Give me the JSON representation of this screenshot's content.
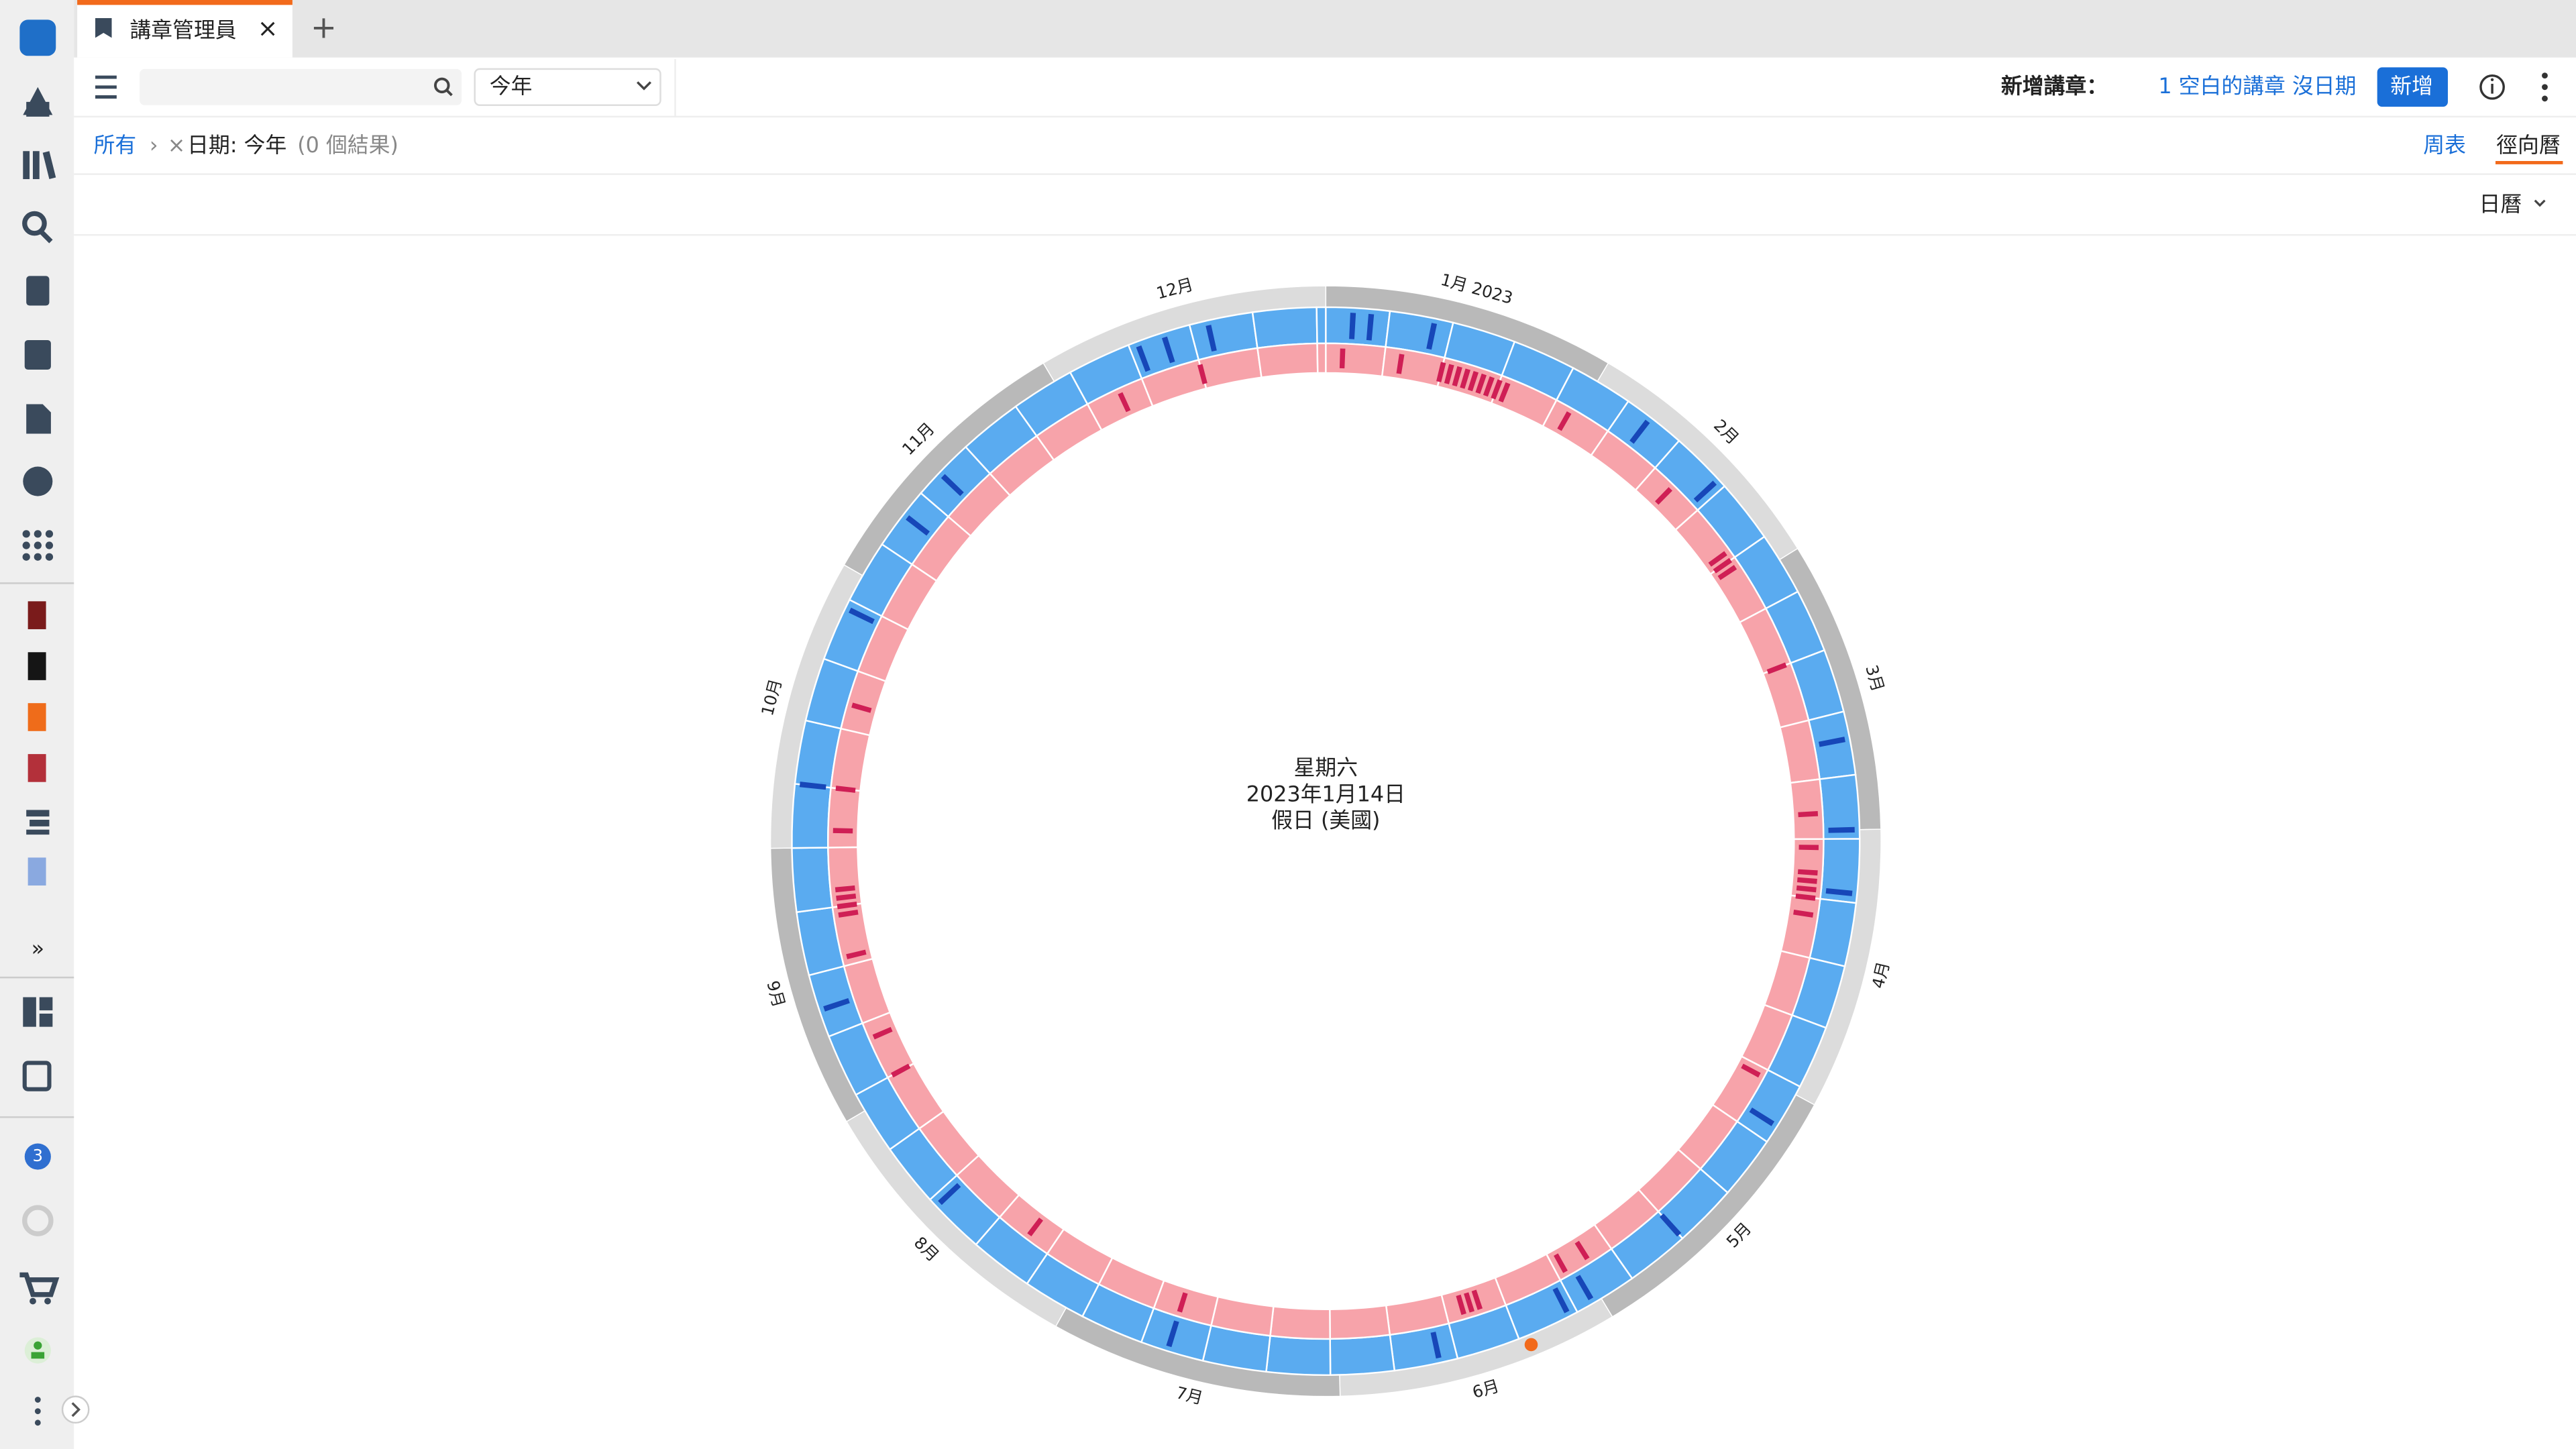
{
  "tab": {
    "title": "講章管理員",
    "close": "×",
    "new_tab": "+"
  },
  "toolbar": {
    "range": "今年",
    "new_label": "新增講章：",
    "blank_link": "1 空白的講章 沒日期",
    "add_button": "新增"
  },
  "breadcrumb": {
    "root": "所有",
    "separator": "›",
    "remove": "×",
    "filter": "日期: 今年",
    "results": "(0 個結果)"
  },
  "views": {
    "weekly": "周表",
    "radial": "徑向曆",
    "calendar": "日曆",
    "sidebar_expand": "»",
    "badge": "3"
  },
  "months": [
    "1月 2023",
    "2月",
    "3月",
    "4月",
    "5月",
    "6月",
    "7月",
    "8月",
    "9月",
    "10月",
    "11月",
    "12月"
  ],
  "center": {
    "weekday": "星期六",
    "date": "2023年1月14日",
    "holiday": "假日 (美國)"
  }
}
